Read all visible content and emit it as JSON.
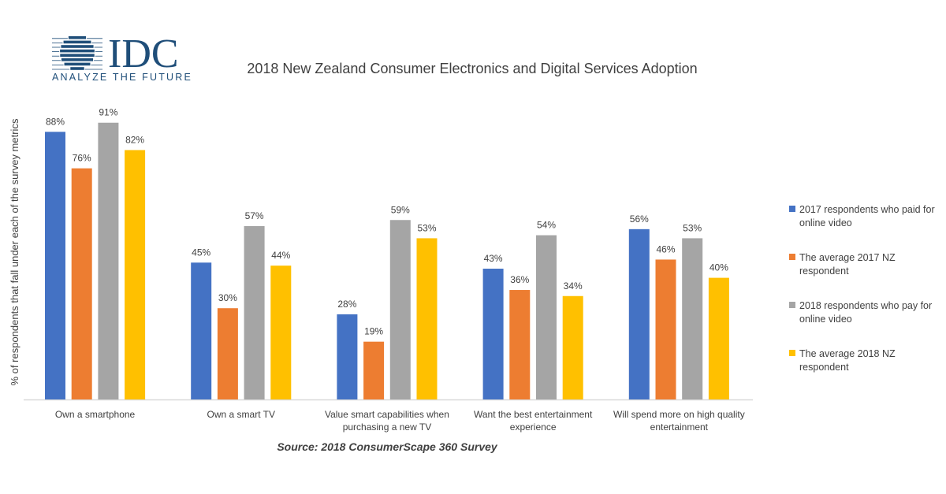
{
  "logo": {
    "text": "IDC",
    "tagline": "ANALYZE THE FUTURE",
    "color": "#1f4e79"
  },
  "chart_data": {
    "type": "bar",
    "title": "2018 New Zealand Consumer  Electronics and Digital Services  Adoption",
    "ylabel": "% of respondents that fall under each of the survey metrics",
    "xlabel": "",
    "ylim": [
      0,
      100
    ],
    "grid": false,
    "legend_position": "right",
    "source": "Source: 2018 ConsumerScape 360 Survey",
    "categories": [
      [
        "Own a smartphone"
      ],
      [
        "Own a smart TV"
      ],
      [
        "Value smart capabilities when",
        "purchasing a new TV"
      ],
      [
        "Want the best entertainment",
        "experience"
      ],
      [
        "Will spend more on high quality",
        "entertainment"
      ]
    ],
    "series": [
      {
        "name": [
          "2017 respondents who paid for",
          "online video"
        ],
        "color": "#4472c4",
        "values": [
          88,
          45,
          28,
          43,
          56
        ]
      },
      {
        "name": [
          "The average 2017 NZ",
          "respondent"
        ],
        "color": "#ed7d31",
        "values": [
          76,
          30,
          19,
          36,
          46
        ]
      },
      {
        "name": [
          "2018 respondents who pay for",
          "online video"
        ],
        "color": "#a5a5a5",
        "values": [
          91,
          57,
          59,
          54,
          53
        ]
      },
      {
        "name": [
          "The average 2018 NZ",
          "respondent"
        ],
        "color": "#ffc000",
        "values": [
          82,
          44,
          53,
          34,
          40
        ]
      }
    ],
    "value_suffix": "%"
  }
}
